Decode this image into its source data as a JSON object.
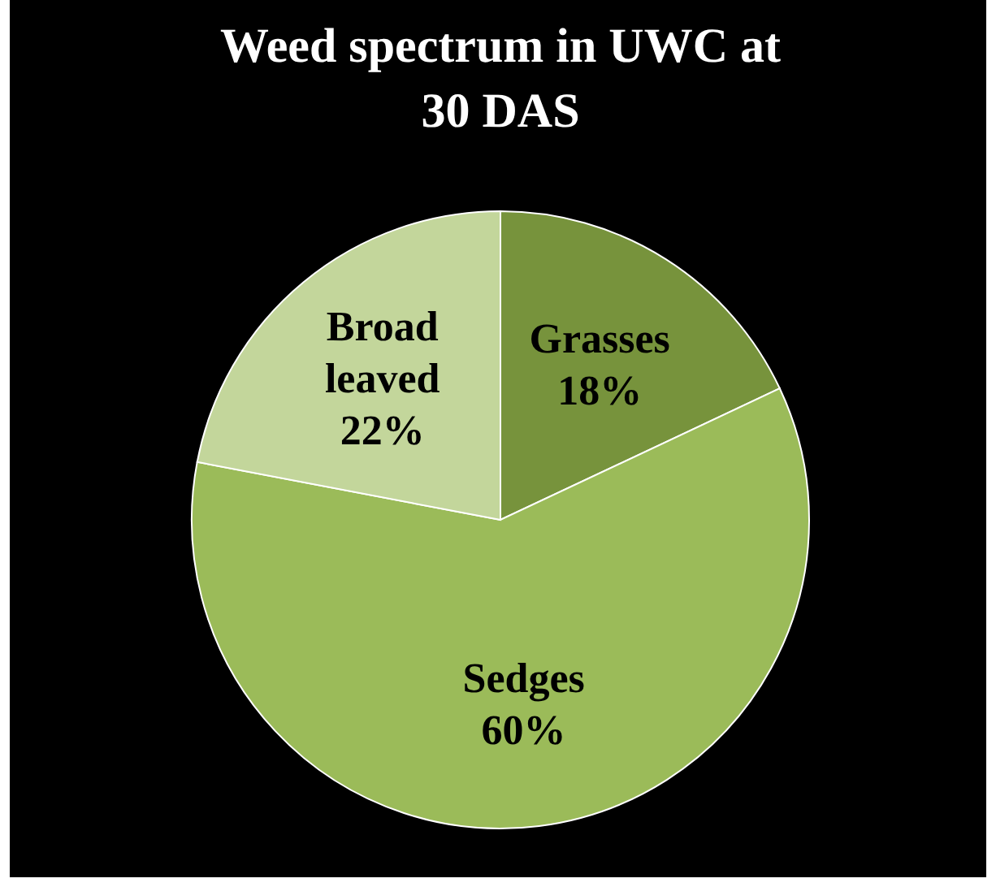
{
  "chart_data": {
    "type": "pie",
    "title": "Weed spectrum in UWC at 30 DAS",
    "categories": [
      "Grasses",
      "Sedges",
      "Broad leaved"
    ],
    "values": [
      18,
      60,
      22
    ],
    "colors": [
      "#77933c",
      "#9bbb59",
      "#c3d69b"
    ],
    "value_labels": [
      "18%",
      "60%",
      "22%"
    ]
  }
}
